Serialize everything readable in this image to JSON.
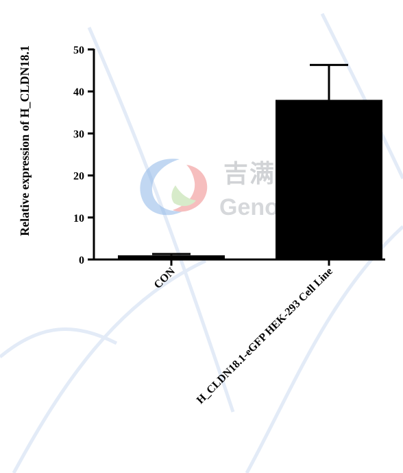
{
  "chart_data": {
    "type": "bar",
    "title": "",
    "xlabel": "",
    "ylabel": "Relative expression of H_CLDN18.1",
    "ylim": [
      0,
      50
    ],
    "yticks": [
      0,
      10,
      20,
      30,
      40,
      50
    ],
    "categories": [
      "CON",
      "H_CLDN18.1-eGFP HEK-293 Cell Line"
    ],
    "values": [
      1,
      38
    ],
    "errors": [
      0.3,
      8.3
    ],
    "bar_color": "#000000",
    "grid": false,
    "legend": "none"
  },
  "watermark": {
    "chinese": "吉满生物科技",
    "english": "Genomeditech",
    "logo": "genomeditech-logo-icon"
  }
}
